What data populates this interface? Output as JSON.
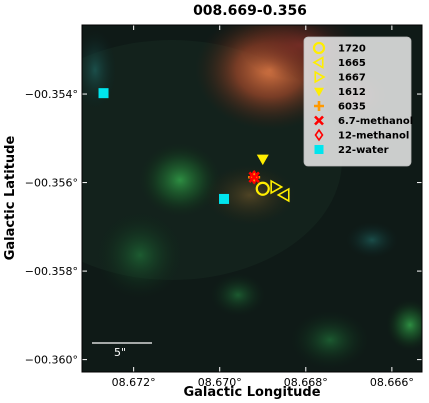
{
  "chart_data": {
    "type": "scatter",
    "title": "008.669-0.356",
    "xlabel": "Galactic Longitude",
    "ylabel": "Galactic Latitude",
    "xlim": [
      8.6732,
      8.6653
    ],
    "ylim": [
      -0.36028,
      -0.35244
    ],
    "xticks": [
      8.672,
      8.67,
      8.668,
      8.666
    ],
    "xtick_labels": [
      "08.672°",
      "08.670°",
      "08.668°",
      "08.666°"
    ],
    "yticks": [
      -0.354,
      -0.356,
      -0.358,
      -0.36
    ],
    "ytick_labels": [
      "−00.354°",
      "−00.356°",
      "−00.358°",
      "−00.360°"
    ],
    "scalebar_label": "5\"",
    "background": "three-colour infrared image",
    "legend_position": "top-right",
    "series": [
      {
        "name": "1720",
        "marker": "circle",
        "color": "#ffee00",
        "points": [
          [
            8.669,
            -0.35614
          ]
        ]
      },
      {
        "name": "1665",
        "marker": "triangle-left",
        "color": "#ffee00",
        "points": [
          [
            8.6685,
            -0.35628
          ]
        ]
      },
      {
        "name": "1667",
        "marker": "triangle-right",
        "color": "#ffee00",
        "points": [
          [
            8.6687,
            -0.3561
          ]
        ]
      },
      {
        "name": "1612",
        "marker": "triangle-down",
        "color": "#ffee00",
        "points": [
          [
            8.669,
            -0.35547
          ]
        ]
      },
      {
        "name": "6035",
        "marker": "plus",
        "color": "#ff9900",
        "points": [
          [
            8.6692,
            -0.35588
          ]
        ]
      },
      {
        "name": "6.7-methanol",
        "marker": "x",
        "color": "#ff0000",
        "points": [
          [
            8.6692,
            -0.35588
          ]
        ]
      },
      {
        "name": "12-methanol",
        "marker": "diamond",
        "color": "#ff0000",
        "points": [
          [
            8.6692,
            -0.35588
          ]
        ]
      },
      {
        "name": "22-water",
        "marker": "square",
        "color": "#00e5ee",
        "points": [
          [
            8.6727,
            -0.35398
          ],
          [
            8.6699,
            -0.35637
          ]
        ]
      }
    ]
  }
}
